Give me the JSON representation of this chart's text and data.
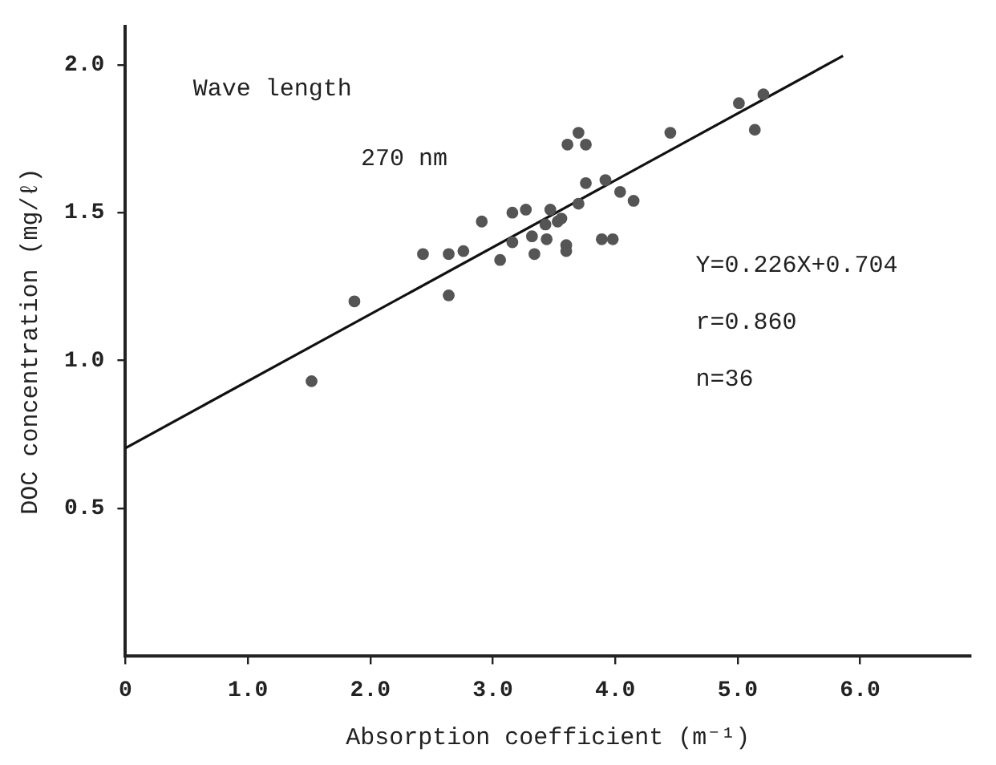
{
  "chart_data": {
    "type": "scatter",
    "xlabel": "Absorption coefficient (m⁻¹)",
    "ylabel": "DOC concentration (mg/ℓ)",
    "xlim": [
      0,
      6.9
    ],
    "ylim": [
      0,
      2.13
    ],
    "xticks": [
      0,
      {
        "value": 1,
        "label": "1.0"
      },
      {
        "value": 2,
        "label": "2.0"
      },
      {
        "value": 3,
        "label": "3.0"
      },
      {
        "value": 4,
        "label": "4.0"
      },
      {
        "value": 5,
        "label": "5.0"
      },
      {
        "value": 6,
        "label": "6.0"
      }
    ],
    "yticks": [
      0.5,
      {
        "value": 1,
        "label": "1.0"
      },
      1.5,
      {
        "value": 2,
        "label": "2.0"
      }
    ],
    "marker": "circle",
    "legend": false,
    "grid": false,
    "annotations": [
      "Wave length",
      "270 nm",
      "Y=0.226X+0.704",
      "r=0.860",
      "n=36"
    ],
    "series": [
      {
        "color": "#555555",
        "x": [
          1.52,
          1.87,
          2.43,
          2.64,
          2.76,
          2.64,
          2.91,
          3.06,
          3.16,
          3.16,
          3.27,
          3.32,
          3.34,
          3.44,
          3.47,
          3.56,
          3.6,
          3.6,
          3.7,
          3.76,
          3.92,
          4.04,
          4.15,
          3.89,
          3.98,
          3.61,
          3.7,
          3.76,
          4.45,
          5.14,
          5.01,
          5.21,
          3.43,
          3.53
        ],
        "values": [
          0.93,
          1.2,
          1.36,
          1.36,
          1.37,
          1.22,
          1.47,
          1.34,
          1.4,
          1.5,
          1.51,
          1.42,
          1.36,
          1.41,
          1.51,
          1.48,
          1.39,
          1.37,
          1.53,
          1.6,
          1.61,
          1.57,
          1.54,
          1.41,
          1.41,
          1.73,
          1.77,
          1.73,
          1.77,
          1.78,
          1.87,
          1.9,
          1.46,
          1.47
        ]
      },
      {
        "type": "line",
        "color": "#111111",
        "marker": "none",
        "x": [
          0,
          5.86
        ],
        "values": [
          0.704,
          2.03
        ]
      }
    ]
  }
}
